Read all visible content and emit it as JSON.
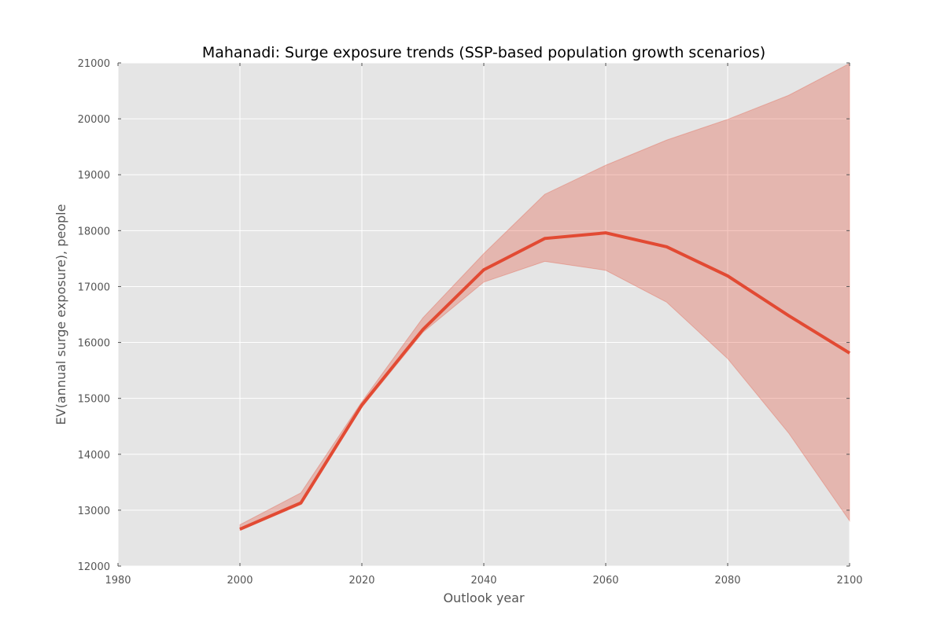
{
  "chart_data": {
    "type": "line",
    "title": "Mahanadi: Surge exposure trends (SSP-based population growth scenarios)",
    "xlabel": "Outlook year",
    "ylabel": "EV(annual surge exposure), people",
    "xlim": [
      1980,
      2100
    ],
    "ylim": [
      12000,
      21000
    ],
    "xticks": [
      1980,
      2000,
      2020,
      2040,
      2060,
      2080,
      2100
    ],
    "yticks": [
      12000,
      13000,
      14000,
      15000,
      16000,
      17000,
      18000,
      19000,
      20000,
      21000
    ],
    "grid": true,
    "x": [
      2000,
      2010,
      2020,
      2030,
      2040,
      2050,
      2060,
      2070,
      2080,
      2090,
      2100
    ],
    "series": [
      {
        "values": [
          12660,
          13130,
          14880,
          16230,
          17300,
          17860,
          17960,
          17710,
          17190,
          16480,
          15810
        ]
      }
    ],
    "band": {
      "upper": [
        12740,
        13310,
        14940,
        16440,
        17590,
        18650,
        19170,
        19620,
        19990,
        20420,
        20990
      ],
      "lower": [
        12640,
        13100,
        14840,
        16180,
        17080,
        17450,
        17290,
        16720,
        15710,
        14380,
        12810
      ]
    },
    "colors": {
      "line": "#E24A33",
      "band": "#E24A33",
      "plot_bg": "#E5E5E5",
      "grid": "#FFFFFF",
      "figure_bg": "#FFFFFF"
    }
  }
}
